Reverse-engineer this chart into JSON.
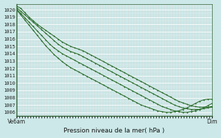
{
  "title": "Pression niveau de la mer( hPa )",
  "xlabel_left": "Ve6am",
  "xlabel_right": "Dim",
  "ylim": [
    1005.5,
    1020.8
  ],
  "yticks": [
    1006,
    1007,
    1008,
    1009,
    1010,
    1011,
    1012,
    1013,
    1014,
    1015,
    1016,
    1017,
    1018,
    1019,
    1020
  ],
  "bg_color": "#cce8e8",
  "grid_color_h": "#ffffff",
  "grid_color_v": "#f0b0b0",
  "line_color": "#2d6e2d",
  "marker": "+",
  "line_width": 0.8,
  "n_points": 48,
  "series": [
    [
      1020.5,
      1020.2,
      1019.6,
      1019.0,
      1018.5,
      1018.0,
      1017.6,
      1017.2,
      1016.8,
      1016.4,
      1016.0,
      1015.6,
      1015.3,
      1015.0,
      1014.8,
      1014.6,
      1014.4,
      1014.1,
      1013.8,
      1013.5,
      1013.2,
      1012.9,
      1012.6,
      1012.3,
      1012.0,
      1011.7,
      1011.4,
      1011.1,
      1010.8,
      1010.5,
      1010.2,
      1009.9,
      1009.6,
      1009.3,
      1009.0,
      1008.7,
      1008.4,
      1008.1,
      1007.8,
      1007.5,
      1007.3,
      1007.1,
      1006.9,
      1006.8,
      1006.7,
      1006.7,
      1006.7,
      1006.8
    ],
    [
      1020.3,
      1019.8,
      1019.3,
      1018.8,
      1018.3,
      1017.8,
      1017.3,
      1016.8,
      1016.3,
      1015.8,
      1015.3,
      1014.9,
      1014.6,
      1014.3,
      1014.1,
      1013.9,
      1013.6,
      1013.3,
      1013.0,
      1012.7,
      1012.4,
      1012.1,
      1011.8,
      1011.5,
      1011.2,
      1010.9,
      1010.6,
      1010.3,
      1010.0,
      1009.7,
      1009.4,
      1009.1,
      1008.8,
      1008.5,
      1008.2,
      1007.9,
      1007.6,
      1007.3,
      1007.0,
      1006.8,
      1006.6,
      1006.5,
      1006.4,
      1006.4,
      1006.4,
      1006.5,
      1006.6,
      1006.7
    ],
    [
      1020.1,
      1019.5,
      1018.9,
      1018.3,
      1017.7,
      1017.1,
      1016.5,
      1015.9,
      1015.3,
      1014.8,
      1014.4,
      1014.0,
      1013.7,
      1013.4,
      1013.1,
      1012.8,
      1012.5,
      1012.2,
      1011.9,
      1011.6,
      1011.3,
      1011.0,
      1010.7,
      1010.4,
      1010.1,
      1009.8,
      1009.5,
      1009.2,
      1008.9,
      1008.6,
      1008.3,
      1008.0,
      1007.7,
      1007.4,
      1007.1,
      1006.8,
      1006.6,
      1006.4,
      1006.2,
      1006.1,
      1006.0,
      1006.0,
      1006.1,
      1006.2,
      1006.4,
      1006.6,
      1006.9,
      1007.2
    ],
    [
      1020.0,
      1019.3,
      1018.6,
      1017.9,
      1017.2,
      1016.5,
      1015.8,
      1015.1,
      1014.5,
      1013.9,
      1013.4,
      1012.9,
      1012.5,
      1012.1,
      1011.8,
      1011.5,
      1011.2,
      1010.9,
      1010.6,
      1010.3,
      1010.0,
      1009.7,
      1009.4,
      1009.1,
      1008.8,
      1008.5,
      1008.2,
      1007.9,
      1007.6,
      1007.3,
      1007.0,
      1006.8,
      1006.6,
      1006.4,
      1006.2,
      1006.1,
      1006.0,
      1006.0,
      1006.1,
      1006.2,
      1006.4,
      1006.6,
      1006.9,
      1007.2,
      1007.5,
      1007.7,
      1007.8,
      1007.8
    ]
  ]
}
